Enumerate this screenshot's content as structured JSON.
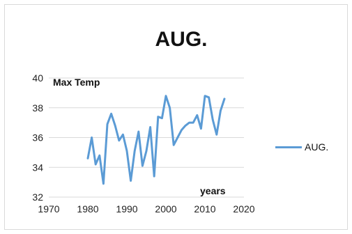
{
  "chart_data": {
    "type": "line",
    "title": "AUG.",
    "ylabel": "Max Temp",
    "xlabel": "years",
    "xlim": [
      1970,
      2020
    ],
    "ylim": [
      32,
      40
    ],
    "xticks": [
      1970,
      1980,
      1990,
      2000,
      2010,
      2020
    ],
    "yticks": [
      32,
      34,
      36,
      38,
      40
    ],
    "grid": "horizontal",
    "legend_position": "right",
    "series": [
      {
        "name": "AUG.",
        "color": "#5b9bd5",
        "x": [
          1980,
          1981,
          1982,
          1983,
          1984,
          1985,
          1986,
          1987,
          1988,
          1989,
          1990,
          1991,
          1992,
          1993,
          1994,
          1995,
          1996,
          1997,
          1998,
          1999,
          2000,
          2001,
          2002,
          2003,
          2004,
          2005,
          2006,
          2007,
          2008,
          2009,
          2010,
          2011,
          2012,
          2013,
          2014,
          2015
        ],
        "values": [
          34.6,
          36.0,
          34.2,
          34.8,
          32.9,
          36.9,
          37.6,
          36.8,
          35.8,
          36.2,
          35.1,
          33.1,
          35.1,
          36.4,
          34.1,
          35.1,
          36.7,
          33.4,
          37.4,
          37.3,
          38.8,
          38.0,
          35.5,
          36.0,
          36.5,
          36.8,
          37.0,
          37.0,
          37.5,
          36.6,
          38.8,
          38.7,
          37.2,
          36.2,
          37.8,
          38.6
        ]
      }
    ]
  }
}
